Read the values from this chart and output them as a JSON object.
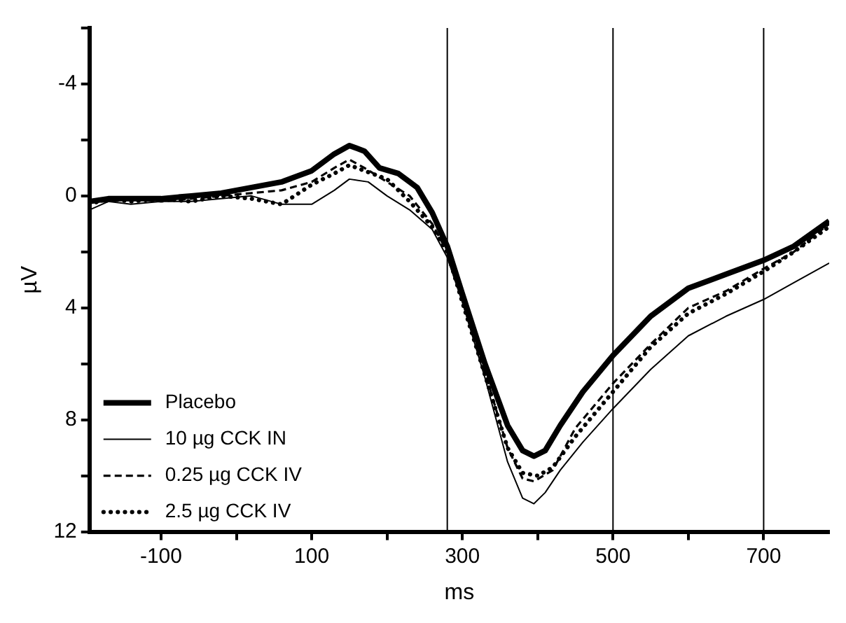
{
  "chart_data": {
    "type": "line",
    "xlabel": "ms",
    "ylabel": "µV",
    "xlim": [
      -195,
      787
    ],
    "xticks": [
      {
        "value": -100,
        "label": "-100"
      },
      {
        "value": 0,
        "label": null
      },
      {
        "value": 100,
        "label": "100"
      },
      {
        "value": 200,
        "label": null
      },
      {
        "value": 300,
        "label": "300"
      },
      {
        "value": 400,
        "label": null
      },
      {
        "value": 500,
        "label": "500"
      },
      {
        "value": 600,
        "label": null
      },
      {
        "value": 700,
        "label": "700"
      }
    ],
    "ylim": [
      12,
      -6
    ],
    "yticks": [
      {
        "value": -6,
        "label": null
      },
      {
        "value": -4,
        "label": "-4"
      },
      {
        "value": -2,
        "label": null
      },
      {
        "value": 0,
        "label": "0"
      },
      {
        "value": 2,
        "label": null
      },
      {
        "value": 4,
        "label": "4"
      },
      {
        "value": 6,
        "label": null
      },
      {
        "value": 8,
        "label": "8"
      },
      {
        "value": 10,
        "label": null
      },
      {
        "value": 12,
        "label": "12"
      }
    ],
    "grid": false,
    "legend": "bottom left",
    "marker": "none",
    "ref_lines": [
      {
        "axis": "x",
        "value": 280,
        "color": "#000000"
      },
      {
        "axis": "x",
        "value": 500,
        "color": "#000000"
      },
      {
        "axis": "x",
        "value": 700,
        "color": "#000000"
      }
    ],
    "series": [
      {
        "name": "Placebo",
        "color": "#000000",
        "line_style": "solid",
        "x": [
          -195,
          -170,
          -140,
          -100,
          -60,
          -20,
          20,
          60,
          100,
          130,
          150,
          170,
          190,
          215,
          240,
          260,
          280,
          300,
          330,
          360,
          380,
          395,
          410,
          430,
          460,
          500,
          550,
          600,
          650,
          700,
          740,
          787
        ],
        "values": [
          0.2,
          0.1,
          0.1,
          0.1,
          0,
          -0.1,
          -0.3,
          -0.5,
          -0.9,
          -1.5,
          -1.8,
          -1.6,
          -1.0,
          -0.8,
          -0.3,
          0.6,
          1.8,
          3.5,
          6,
          8.2,
          9.1,
          9.3,
          9.1,
          8.2,
          7.0,
          5.7,
          4.3,
          3.3,
          2.8,
          2.3,
          1.8,
          0.9
        ]
      },
      {
        "name": "10 µg CCK IN",
        "color": "#000000",
        "line_style": "solid",
        "x": [
          -195,
          -170,
          -140,
          -100,
          -60,
          -20,
          20,
          60,
          100,
          130,
          150,
          175,
          200,
          230,
          260,
          280,
          300,
          330,
          360,
          380,
          395,
          410,
          430,
          460,
          500,
          550,
          600,
          650,
          700,
          740,
          787
        ],
        "values": [
          0.5,
          0.2,
          0.3,
          0.2,
          0.2,
          0.1,
          0,
          0.3,
          0.3,
          -0.2,
          -0.6,
          -0.5,
          0,
          0.5,
          1.2,
          2.2,
          3.8,
          6.5,
          9.5,
          10.8,
          11.0,
          10.6,
          9.8,
          8.8,
          7.6,
          6.2,
          5.0,
          4.3,
          3.7,
          3.1,
          2.4
        ]
      },
      {
        "name": "0.25 µg CCK IV",
        "color": "#000000",
        "line_style": "dashed",
        "x": [
          -195,
          -170,
          -140,
          -100,
          -60,
          -20,
          20,
          60,
          100,
          130,
          150,
          170,
          200,
          230,
          260,
          280,
          300,
          330,
          360,
          380,
          395,
          420,
          450,
          500,
          550,
          600,
          650,
          700,
          740,
          787
        ],
        "values": [
          0.2,
          0.2,
          0.1,
          0.2,
          0.1,
          0,
          -0.1,
          -0.2,
          -0.5,
          -1.0,
          -1.3,
          -1.0,
          -0.5,
          0,
          1.0,
          2.0,
          3.7,
          6.3,
          9.0,
          10.1,
          10.2,
          9.8,
          8.3,
          6.7,
          5.3,
          4.0,
          3.4,
          2.6,
          2.0,
          1.0
        ]
      },
      {
        "name": "2.5 µg CCK IV",
        "color": "#000000",
        "line_style": "dotted",
        "x": [
          -195,
          -170,
          -140,
          -100,
          -60,
          -20,
          20,
          60,
          100,
          130,
          150,
          170,
          200,
          230,
          260,
          280,
          300,
          330,
          360,
          380,
          400,
          420,
          450,
          500,
          550,
          600,
          650,
          700,
          740,
          787
        ],
        "values": [
          0.3,
          0.1,
          0.2,
          0.1,
          0.2,
          0,
          0.1,
          0.3,
          -0.4,
          -0.8,
          -1.1,
          -0.9,
          -0.6,
          0.2,
          1.1,
          2.0,
          3.8,
          6.4,
          9.0,
          9.9,
          10.0,
          9.7,
          8.6,
          7.0,
          5.4,
          4.2,
          3.5,
          2.7,
          2.0,
          1.1
        ]
      }
    ]
  }
}
